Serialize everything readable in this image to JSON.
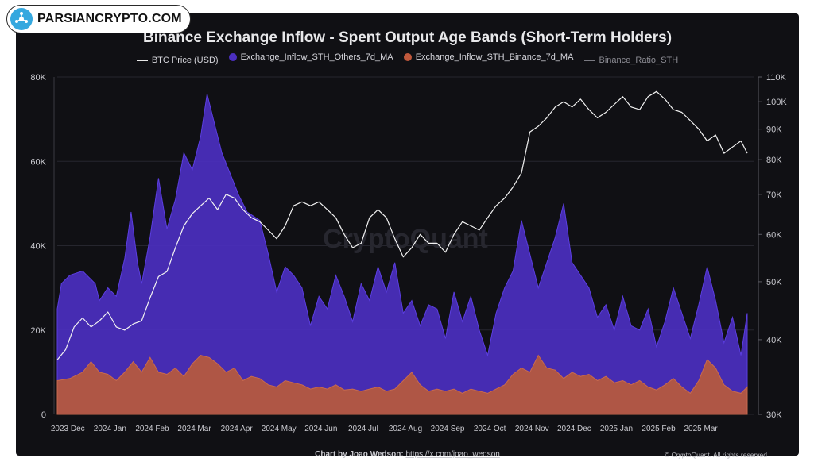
{
  "logo": {
    "text": "PARSIANCRYPTO.COM",
    "icon": "network-hub-icon"
  },
  "watermark": "CryptoQuant",
  "footer": {
    "credit_prefix": "Chart by Joao Wedson:",
    "credit_link": "https://x.com/joao_wedson",
    "copyright": "© CryptoQuant. All rights reserved"
  },
  "colors": {
    "background": "#101014",
    "others": "#4b2fc0",
    "binance": "#b5583f",
    "btc": "#f2f2f2"
  },
  "chart_data": {
    "type": "area",
    "title": "Binance Exchange Inflow - Spent Output Age Bands (Short-Term Holders)",
    "legend": [
      {
        "name": "BTC Price (USD)",
        "marker": "line",
        "color": "#f2f2f2"
      },
      {
        "name": "Exchange_Inflow_STH_Others_7d_MA",
        "marker": "dot",
        "color": "#4b2fc0"
      },
      {
        "name": "Exchange_Inflow_STH_Binance_7d_MA",
        "marker": "dot",
        "color": "#c0583c"
      },
      {
        "name": "Binance_Ratio_STH",
        "marker": "line",
        "color": "#8c8c94",
        "hidden": true
      }
    ],
    "x_tick_labels": [
      "2023 Dec",
      "2024 Jan",
      "2024 Feb",
      "2024 Mar",
      "2024 Apr",
      "2024 May",
      "2024 Jun",
      "2024 Jul",
      "2024 Aug",
      "2024 Sep",
      "2024 Oct",
      "2024 Nov",
      "2024 Dec",
      "2025 Jan",
      "2025 Feb",
      "2025 Mar"
    ],
    "y_left": {
      "ticks": [
        0,
        20000,
        40000,
        60000,
        80000
      ],
      "tick_labels": [
        "0",
        "20K",
        "40K",
        "60K",
        "80K"
      ],
      "range": [
        0,
        80000
      ]
    },
    "y_right": {
      "scale": "log",
      "ticks": [
        30000,
        40000,
        50000,
        60000,
        70000,
        80000,
        90000,
        100000,
        110000
      ],
      "tick_labels": [
        "30K",
        "40K",
        "50K",
        "60K",
        "70K",
        "80K",
        "90K",
        "100K",
        "110K"
      ],
      "range": [
        30000,
        110000
      ]
    },
    "x_range": [
      0,
      16.5
    ],
    "series": [
      {
        "name": "Exchange_Inflow_STH_Others_7d_MA",
        "axis": "left",
        "color": "#4b2fc0",
        "values": [
          [
            0,
            25000
          ],
          [
            0.1,
            31000
          ],
          [
            0.3,
            33000
          ],
          [
            0.6,
            34000
          ],
          [
            0.9,
            31000
          ],
          [
            1.0,
            27000
          ],
          [
            1.2,
            30000
          ],
          [
            1.4,
            28000
          ],
          [
            1.6,
            37000
          ],
          [
            1.75,
            48000
          ],
          [
            1.9,
            36000
          ],
          [
            2.0,
            31000
          ],
          [
            2.2,
            42000
          ],
          [
            2.4,
            56000
          ],
          [
            2.6,
            44000
          ],
          [
            2.8,
            51000
          ],
          [
            3.0,
            62000
          ],
          [
            3.2,
            58000
          ],
          [
            3.4,
            66000
          ],
          [
            3.55,
            76000
          ],
          [
            3.7,
            70000
          ],
          [
            3.9,
            62000
          ],
          [
            4.1,
            57000
          ],
          [
            4.3,
            52000
          ],
          [
            4.5,
            48000
          ],
          [
            4.8,
            46000
          ],
          [
            5.0,
            38000
          ],
          [
            5.2,
            29000
          ],
          [
            5.4,
            35000
          ],
          [
            5.6,
            33000
          ],
          [
            5.8,
            30000
          ],
          [
            6.0,
            21000
          ],
          [
            6.2,
            28000
          ],
          [
            6.4,
            25000
          ],
          [
            6.6,
            33000
          ],
          [
            6.8,
            28000
          ],
          [
            7.0,
            22000
          ],
          [
            7.2,
            31000
          ],
          [
            7.4,
            27000
          ],
          [
            7.6,
            35000
          ],
          [
            7.8,
            29000
          ],
          [
            8.0,
            36000
          ],
          [
            8.2,
            24000
          ],
          [
            8.4,
            27000
          ],
          [
            8.6,
            21000
          ],
          [
            8.8,
            26000
          ],
          [
            9.0,
            25000
          ],
          [
            9.2,
            18000
          ],
          [
            9.4,
            29000
          ],
          [
            9.6,
            22000
          ],
          [
            9.8,
            28000
          ],
          [
            10.0,
            20000
          ],
          [
            10.2,
            14000
          ],
          [
            10.4,
            24000
          ],
          [
            10.6,
            30000
          ],
          [
            10.8,
            34000
          ],
          [
            11.0,
            46000
          ],
          [
            11.2,
            38000
          ],
          [
            11.4,
            30000
          ],
          [
            11.6,
            36000
          ],
          [
            11.8,
            42000
          ],
          [
            12.0,
            50000
          ],
          [
            12.2,
            36000
          ],
          [
            12.4,
            33000
          ],
          [
            12.6,
            30000
          ],
          [
            12.8,
            23000
          ],
          [
            13.0,
            26000
          ],
          [
            13.2,
            20000
          ],
          [
            13.4,
            28000
          ],
          [
            13.6,
            21000
          ],
          [
            13.8,
            20000
          ],
          [
            14.0,
            25000
          ],
          [
            14.2,
            16000
          ],
          [
            14.4,
            22000
          ],
          [
            14.6,
            30000
          ],
          [
            14.8,
            24000
          ],
          [
            15.0,
            18000
          ],
          [
            15.2,
            26000
          ],
          [
            15.4,
            35000
          ],
          [
            15.6,
            27000
          ],
          [
            15.8,
            17000
          ],
          [
            16.0,
            23000
          ],
          [
            16.2,
            14000
          ],
          [
            16.35,
            24000
          ]
        ]
      },
      {
        "name": "Exchange_Inflow_STH_Binance_7d_MA",
        "axis": "left",
        "color": "#b5583f",
        "values": [
          [
            0,
            8000
          ],
          [
            0.3,
            8500
          ],
          [
            0.6,
            10000
          ],
          [
            0.8,
            12500
          ],
          [
            1.0,
            10000
          ],
          [
            1.2,
            9500
          ],
          [
            1.4,
            8000
          ],
          [
            1.6,
            10000
          ],
          [
            1.8,
            12500
          ],
          [
            2.0,
            10000
          ],
          [
            2.2,
            13500
          ],
          [
            2.4,
            10000
          ],
          [
            2.6,
            9500
          ],
          [
            2.8,
            11000
          ],
          [
            3.0,
            9000
          ],
          [
            3.2,
            12000
          ],
          [
            3.4,
            14000
          ],
          [
            3.6,
            13500
          ],
          [
            3.8,
            12000
          ],
          [
            4.0,
            10000
          ],
          [
            4.2,
            11000
          ],
          [
            4.4,
            8000
          ],
          [
            4.6,
            9000
          ],
          [
            4.8,
            8500
          ],
          [
            5.0,
            7000
          ],
          [
            5.2,
            6500
          ],
          [
            5.4,
            8000
          ],
          [
            5.6,
            7500
          ],
          [
            5.8,
            7000
          ],
          [
            6.0,
            6000
          ],
          [
            6.2,
            6500
          ],
          [
            6.4,
            6000
          ],
          [
            6.6,
            7000
          ],
          [
            6.8,
            5800
          ],
          [
            7.0,
            6000
          ],
          [
            7.2,
            5500
          ],
          [
            7.4,
            6000
          ],
          [
            7.6,
            6500
          ],
          [
            7.8,
            5500
          ],
          [
            8.0,
            6000
          ],
          [
            8.2,
            8000
          ],
          [
            8.4,
            10000
          ],
          [
            8.6,
            7000
          ],
          [
            8.8,
            5500
          ],
          [
            9.0,
            6000
          ],
          [
            9.2,
            5500
          ],
          [
            9.4,
            6000
          ],
          [
            9.6,
            5000
          ],
          [
            9.8,
            6000
          ],
          [
            10.0,
            5500
          ],
          [
            10.2,
            5000
          ],
          [
            10.4,
            6000
          ],
          [
            10.6,
            7000
          ],
          [
            10.8,
            9500
          ],
          [
            11.0,
            11000
          ],
          [
            11.2,
            10000
          ],
          [
            11.4,
            14000
          ],
          [
            11.6,
            11000
          ],
          [
            11.8,
            10500
          ],
          [
            12.0,
            8500
          ],
          [
            12.2,
            10000
          ],
          [
            12.4,
            9000
          ],
          [
            12.6,
            9500
          ],
          [
            12.8,
            8000
          ],
          [
            13.0,
            9000
          ],
          [
            13.2,
            7500
          ],
          [
            13.4,
            8000
          ],
          [
            13.6,
            7000
          ],
          [
            13.8,
            8000
          ],
          [
            14.0,
            6500
          ],
          [
            14.2,
            5800
          ],
          [
            14.4,
            7000
          ],
          [
            14.6,
            8500
          ],
          [
            14.8,
            6500
          ],
          [
            15.0,
            5000
          ],
          [
            15.2,
            8000
          ],
          [
            15.4,
            13000
          ],
          [
            15.6,
            11000
          ],
          [
            15.8,
            7000
          ],
          [
            16.0,
            5500
          ],
          [
            16.2,
            5000
          ],
          [
            16.35,
            6500
          ]
        ]
      },
      {
        "name": "BTC Price (USD)",
        "axis": "right",
        "color": "#f2f2f2",
        "values": [
          [
            0,
            37000
          ],
          [
            0.2,
            38500
          ],
          [
            0.4,
            42000
          ],
          [
            0.6,
            43500
          ],
          [
            0.8,
            42000
          ],
          [
            1.0,
            43000
          ],
          [
            1.2,
            44500
          ],
          [
            1.4,
            42000
          ],
          [
            1.6,
            41500
          ],
          [
            1.8,
            42500
          ],
          [
            2.0,
            43000
          ],
          [
            2.2,
            47000
          ],
          [
            2.4,
            51000
          ],
          [
            2.6,
            52000
          ],
          [
            2.8,
            57000
          ],
          [
            3.0,
            62000
          ],
          [
            3.2,
            65000
          ],
          [
            3.4,
            67000
          ],
          [
            3.6,
            69000
          ],
          [
            3.8,
            66000
          ],
          [
            4.0,
            70000
          ],
          [
            4.2,
            69000
          ],
          [
            4.4,
            66000
          ],
          [
            4.6,
            64000
          ],
          [
            4.8,
            63000
          ],
          [
            5.0,
            61000
          ],
          [
            5.2,
            59000
          ],
          [
            5.4,
            62000
          ],
          [
            5.6,
            67000
          ],
          [
            5.8,
            68000
          ],
          [
            6.0,
            67000
          ],
          [
            6.2,
            68000
          ],
          [
            6.4,
            66000
          ],
          [
            6.6,
            64000
          ],
          [
            6.8,
            60000
          ],
          [
            7.0,
            57000
          ],
          [
            7.2,
            58000
          ],
          [
            7.4,
            64000
          ],
          [
            7.6,
            66000
          ],
          [
            7.8,
            64000
          ],
          [
            8.0,
            59000
          ],
          [
            8.2,
            55000
          ],
          [
            8.4,
            57000
          ],
          [
            8.6,
            60000
          ],
          [
            8.8,
            58000
          ],
          [
            9.0,
            58000
          ],
          [
            9.2,
            56000
          ],
          [
            9.4,
            60000
          ],
          [
            9.6,
            63000
          ],
          [
            9.8,
            62000
          ],
          [
            10.0,
            61000
          ],
          [
            10.2,
            64000
          ],
          [
            10.4,
            67000
          ],
          [
            10.6,
            69000
          ],
          [
            10.8,
            72000
          ],
          [
            11.0,
            76000
          ],
          [
            11.2,
            89000
          ],
          [
            11.4,
            91000
          ],
          [
            11.6,
            94000
          ],
          [
            11.8,
            98000
          ],
          [
            12.0,
            100000
          ],
          [
            12.2,
            98000
          ],
          [
            12.4,
            101000
          ],
          [
            12.6,
            97000
          ],
          [
            12.8,
            94000
          ],
          [
            13.0,
            96000
          ],
          [
            13.2,
            99000
          ],
          [
            13.4,
            102000
          ],
          [
            13.6,
            98000
          ],
          [
            13.8,
            97000
          ],
          [
            14.0,
            102000
          ],
          [
            14.2,
            104000
          ],
          [
            14.4,
            101000
          ],
          [
            14.6,
            97000
          ],
          [
            14.8,
            96000
          ],
          [
            15.0,
            93000
          ],
          [
            15.2,
            90000
          ],
          [
            15.4,
            86000
          ],
          [
            15.6,
            88000
          ],
          [
            15.8,
            82000
          ],
          [
            16.0,
            84000
          ],
          [
            16.2,
            86000
          ],
          [
            16.35,
            82000
          ]
        ]
      }
    ]
  }
}
